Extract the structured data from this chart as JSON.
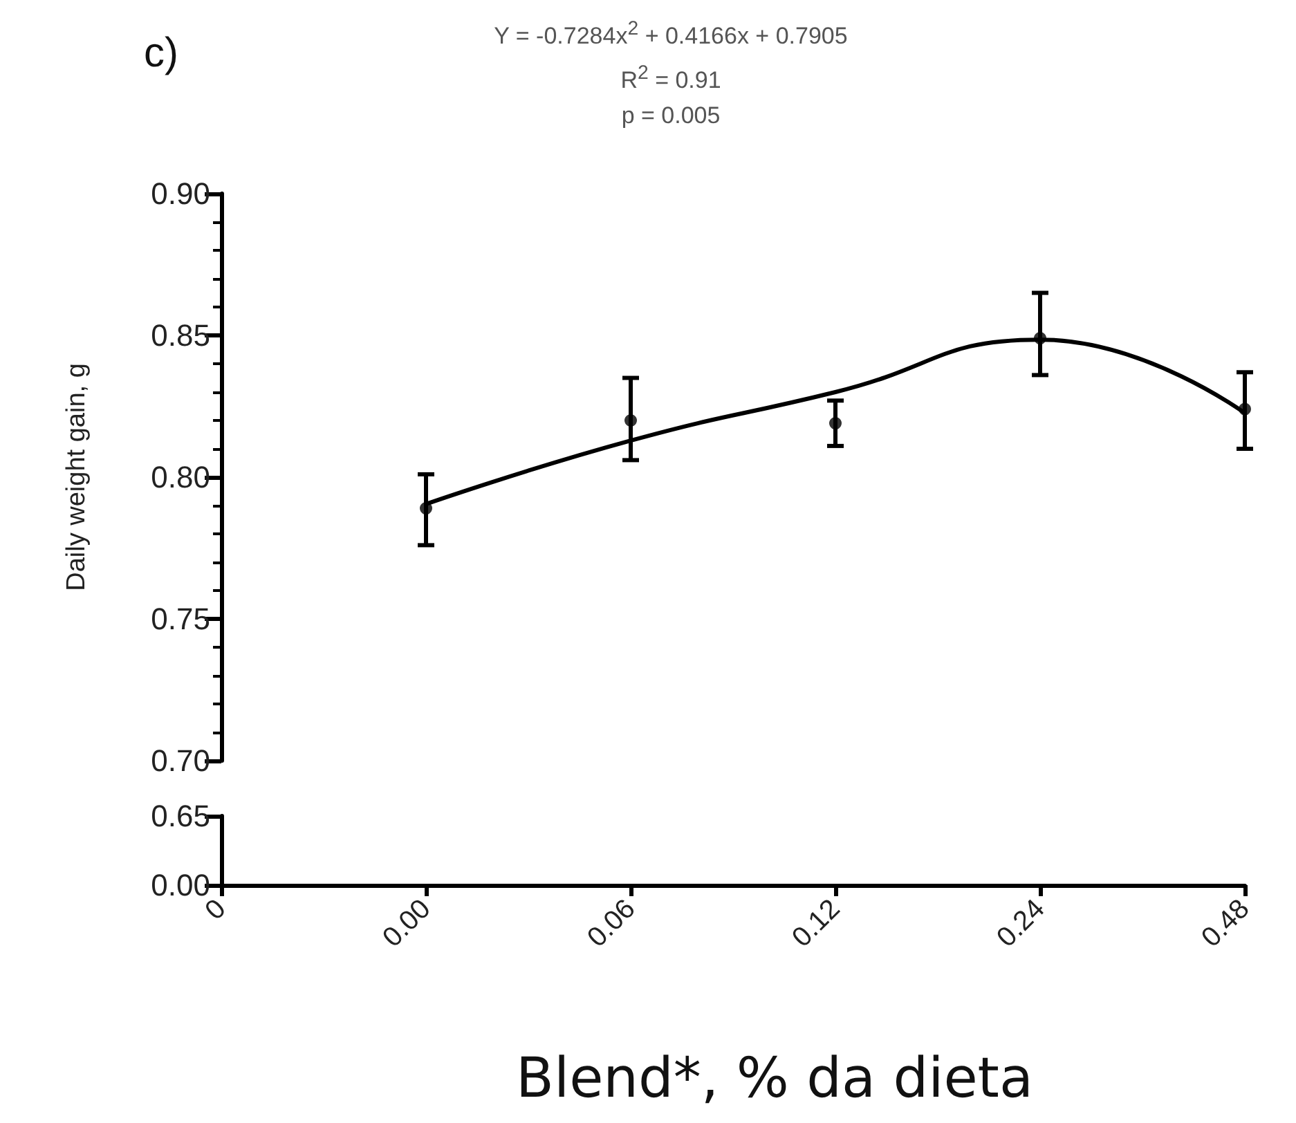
{
  "chart_data": [
    {
      "type": "scatter",
      "title": "c)",
      "annotations": [
        "Y = -0.7284x$^{2}$ + 0.4166x + 0.7905",
        "R$^{2}$ = 0.91",
        "p = 0.005"
      ],
      "ylabel": "Daily weight gain, g",
      "categories": [
        "0",
        "0.00",
        "0.06",
        "0.12",
        "0.24",
        "0.48"
      ],
      "ylim": [
        0.7,
        0.9
      ],
      "yticks": [
        {
          "value": 0.7,
          "label": "0.70"
        },
        0.75,
        {
          "value": 0.8,
          "label": "0.80"
        },
        0.85,
        {
          "value": 0.9,
          "label": "0.90"
        }
      ],
      "tick_labels": "y",
      "marker": "circle",
      "series": [
        {
          "color": "#000000",
          "values": [
            null,
            0.789,
            0.82,
            0.819,
            0.849,
            0.824
          ],
          "errors": [
            null,
            [
              0.776,
              0.801
            ],
            [
              0.806,
              0.835
            ],
            [
              0.811,
              0.827
            ],
            [
              0.836,
              0.865
            ],
            [
              0.81,
              0.837
            ]
          ]
        },
        {
          "type": "line",
          "color": "#000000",
          "marker": "none",
          "values": [
            null,
            0.7905,
            0.8129,
            0.83,
            0.8485,
            0.8226
          ]
        }
      ]
    },
    {
      "type": "line",
      "xlabel": "Blend*, % da dieta",
      "categories": [
        "0",
        "0.00",
        "0.06",
        "0.12",
        "0.24",
        "0.48"
      ],
      "ylim": [
        0,
        0.65
      ],
      "yticks": [
        {
          "value": 0,
          "label": "0.00"
        },
        0.65
      ],
      "series": [
        {
          "color": "#000000",
          "values": [
            null,
            null,
            null,
            null,
            null,
            null
          ]
        }
      ]
    }
  ]
}
